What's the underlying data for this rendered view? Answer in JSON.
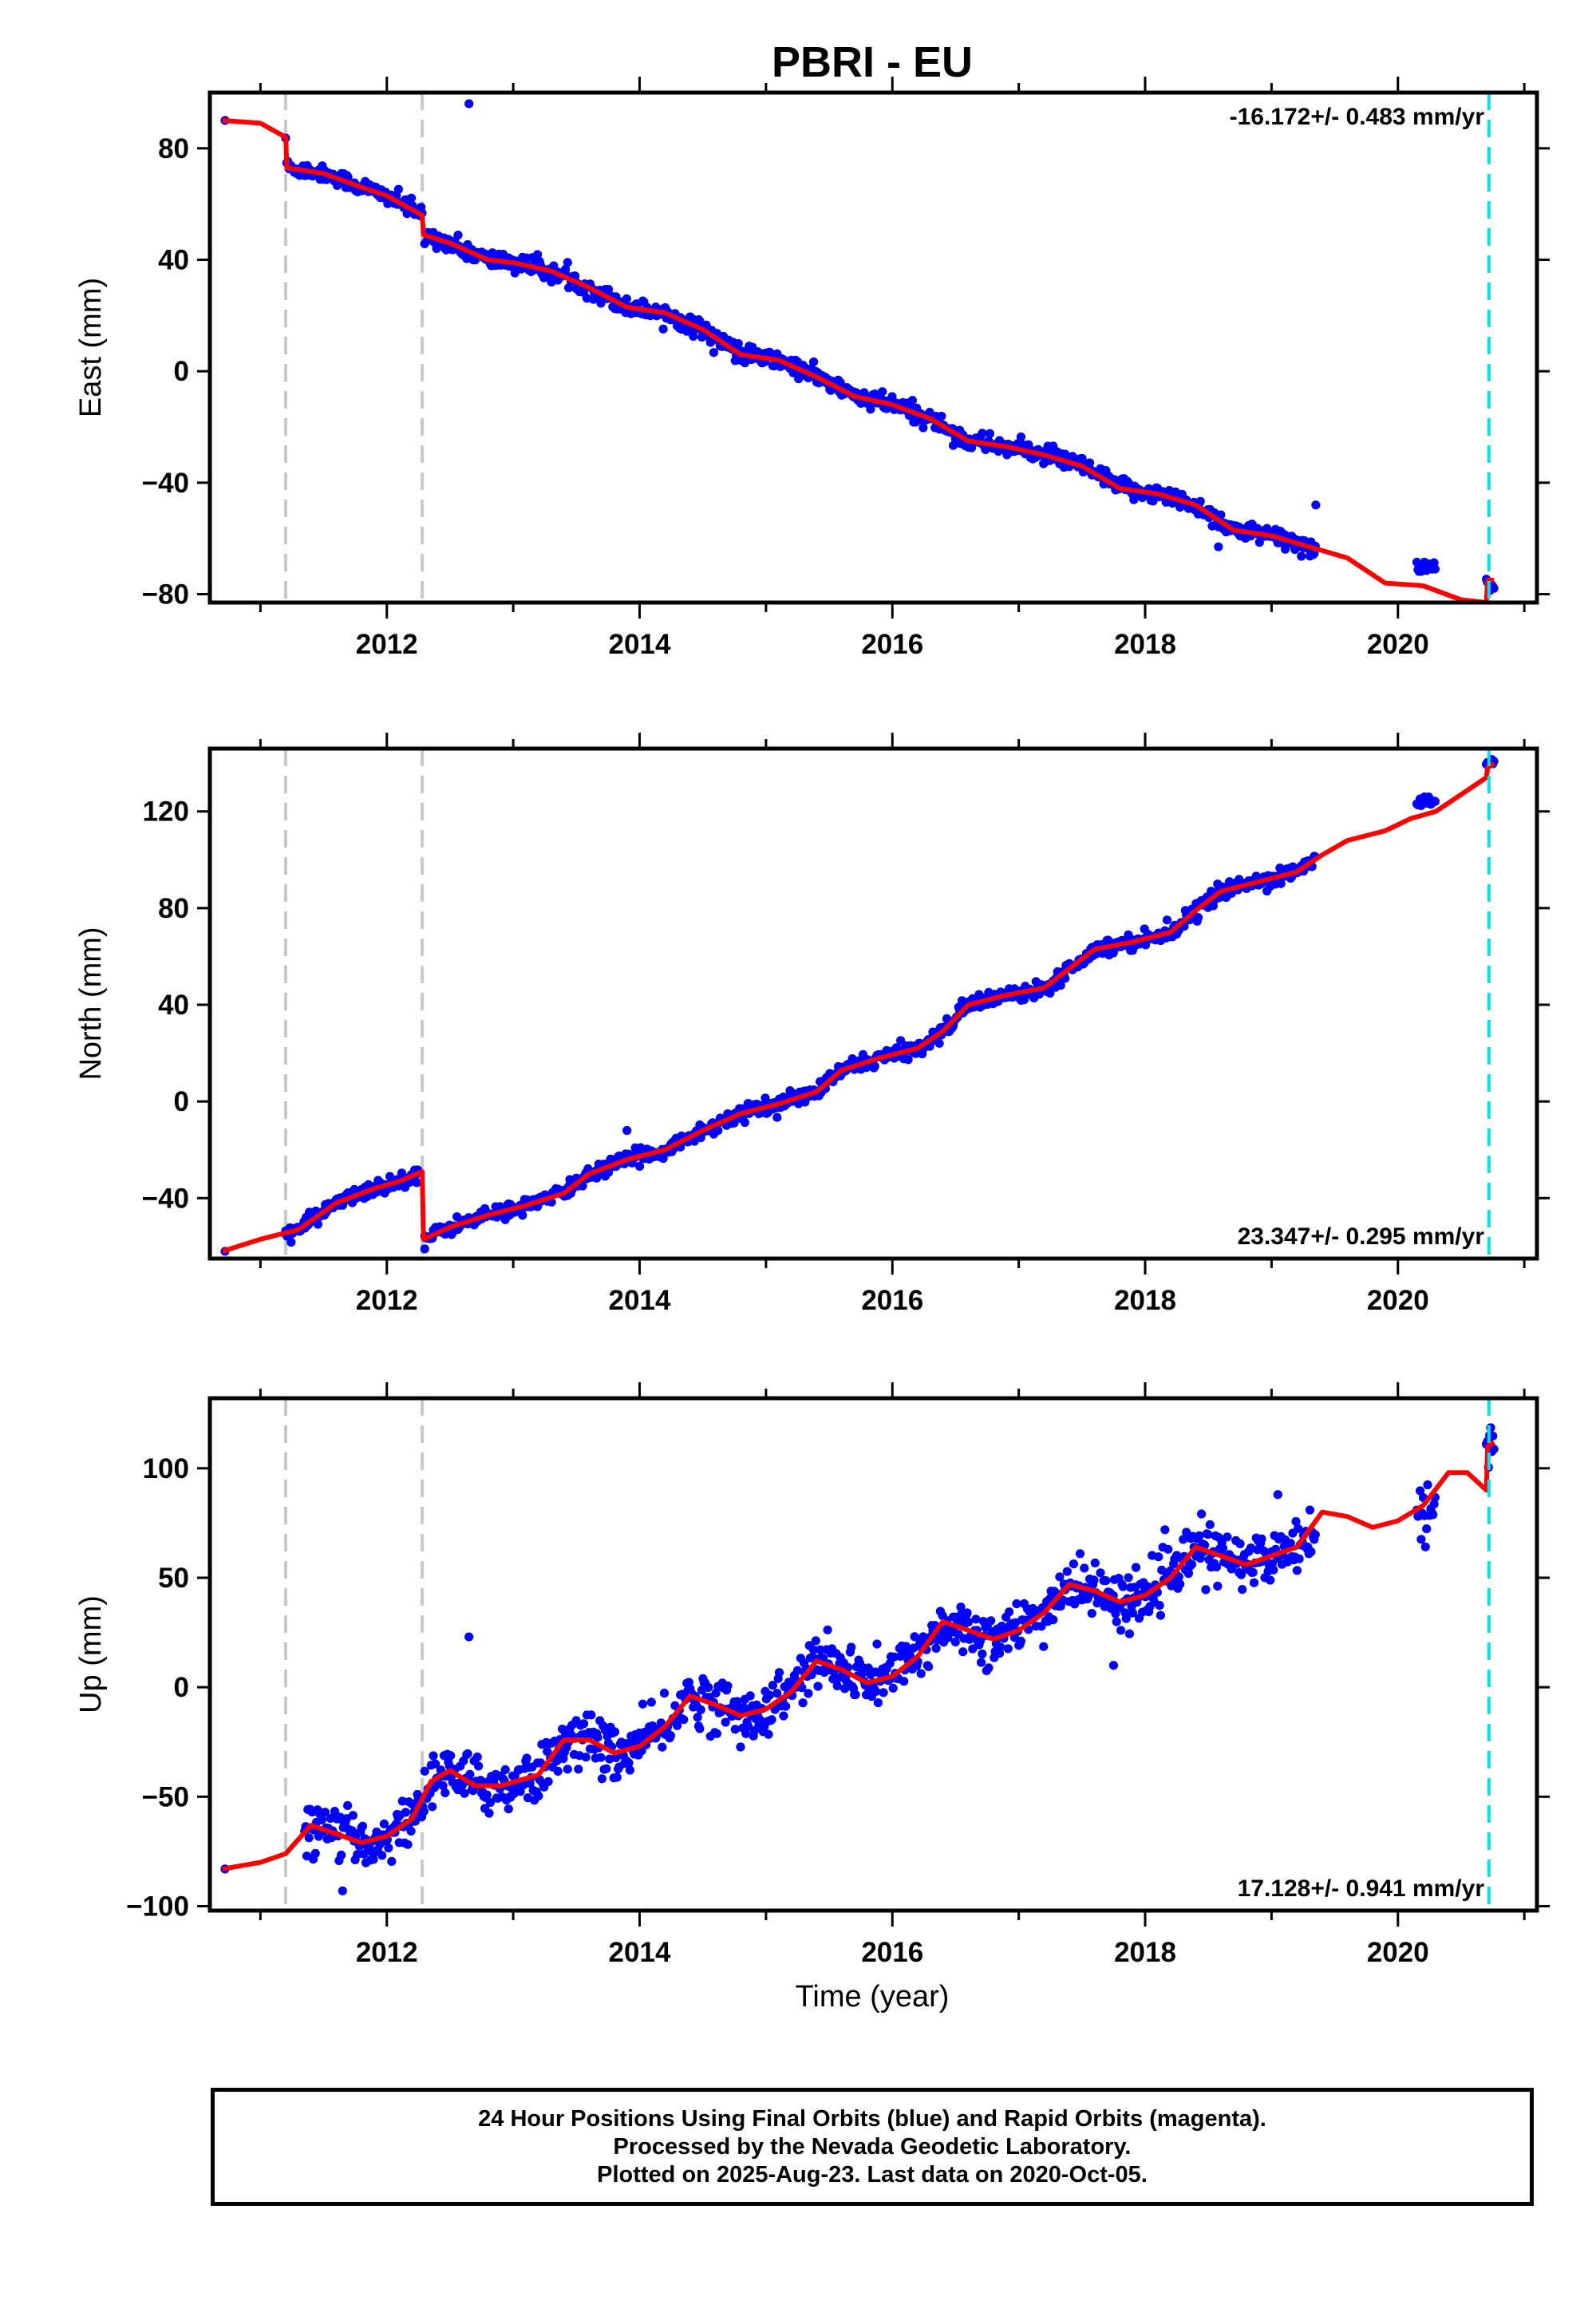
{
  "title": "PBRI - EU",
  "xlabel": "Time (year)",
  "footer": {
    "line1": "24 Hour Positions Using Final Orbits (blue) and Rapid Orbits (magenta).",
    "line2": "Processed by the Nevada Geodetic Laboratory.",
    "line3": "Plotted on 2025-Aug-23. Last data on 2020-Oct-05."
  },
  "colors": {
    "data_points": "#0000ff",
    "model_line": "#ff0000",
    "equipment_change_lines": "#c8c8c8",
    "last_data_line": "#00e5ee",
    "frame": "#000000"
  },
  "chart_data": [
    {
      "type": "scatter",
      "ylabel": "East (mm)",
      "xlim": [
        2010.6,
        2021.1
      ],
      "ylim": [
        -83,
        100
      ],
      "x_ticks": [
        2012,
        2014,
        2016,
        2018,
        2020
      ],
      "y_ticks": [
        80,
        40,
        0,
        -40,
        -80
      ],
      "rate_label": "-16.172+/- 0.483 mm/yr",
      "rate_position": "top-right",
      "vlines_gray": [
        2011.2,
        2012.28
      ],
      "vline_cyan": 2020.72,
      "segments": [
        {
          "start": 2011.2,
          "end": 2012.28,
          "y0": 73,
          "rate": -16.2,
          "noise": 2.2
        },
        {
          "start": 2012.3,
          "end": 2019.35,
          "y0": 48,
          "rate": -15.6,
          "noise": 2.3
        },
        {
          "start": 2020.15,
          "end": 2020.3,
          "y0": -70,
          "rate": 0,
          "noise": 1.5
        },
        {
          "start": 2020.7,
          "end": 2020.76,
          "y0": -77,
          "rate": 0,
          "noise": 2.0
        }
      ],
      "outliers": [
        [
          2010.72,
          90
        ],
        [
          2012.65,
          96
        ],
        [
          2018.58,
          -63
        ],
        [
          2019.35,
          -48
        ]
      ],
      "model_line": [
        [
          2010.7,
          90
        ],
        [
          2011.0,
          89
        ],
        [
          2011.2,
          84
        ],
        [
          2011.21,
          73
        ],
        [
          2011.5,
          71
        ],
        [
          2011.8,
          66
        ],
        [
          2012.0,
          63
        ],
        [
          2012.28,
          56
        ],
        [
          2012.29,
          49
        ],
        [
          2012.5,
          46
        ],
        [
          2012.8,
          40
        ],
        [
          2013.0,
          39
        ],
        [
          2013.3,
          36
        ],
        [
          2013.6,
          30
        ],
        [
          2013.9,
          23
        ],
        [
          2014.2,
          21
        ],
        [
          2014.5,
          15
        ],
        [
          2014.8,
          6
        ],
        [
          2015.1,
          4
        ],
        [
          2015.4,
          -2
        ],
        [
          2015.7,
          -9
        ],
        [
          2016.0,
          -12
        ],
        [
          2016.3,
          -17
        ],
        [
          2016.6,
          -25
        ],
        [
          2016.9,
          -27
        ],
        [
          2017.2,
          -30
        ],
        [
          2017.5,
          -34
        ],
        [
          2017.8,
          -42
        ],
        [
          2018.1,
          -44
        ],
        [
          2018.4,
          -48
        ],
        [
          2018.7,
          -57
        ],
        [
          2019.0,
          -59
        ],
        [
          2019.3,
          -63
        ],
        [
          2019.6,
          -67
        ],
        [
          2019.9,
          -76
        ],
        [
          2020.2,
          -77
        ],
        [
          2020.5,
          -82
        ],
        [
          2020.7,
          -83
        ],
        [
          2020.71,
          -75
        ],
        [
          2020.76,
          -75
        ]
      ]
    },
    {
      "type": "scatter",
      "ylabel": "North (mm)",
      "xlim": [
        2010.6,
        2021.1
      ],
      "ylim": [
        -65,
        146
      ],
      "x_ticks": [
        2012,
        2014,
        2016,
        2018,
        2020
      ],
      "y_ticks": [
        120,
        80,
        40,
        0,
        -40
      ],
      "rate_label": "23.347+/- 0.295 mm/yr",
      "rate_position": "bottom-right",
      "vlines_gray": [
        2011.2,
        2012.28
      ],
      "vline_cyan": 2020.72,
      "segments": [
        {
          "start": 2011.2,
          "end": 2012.25,
          "y0": -53,
          "rate": 21,
          "noise": 2.2
        },
        {
          "start": 2012.3,
          "end": 2019.35,
          "y0": -55,
          "rate": 22.4,
          "noise": 2.2
        },
        {
          "start": 2020.15,
          "end": 2020.3,
          "y0": 124,
          "rate": 0,
          "noise": 1.5
        },
        {
          "start": 2020.7,
          "end": 2020.76,
          "y0": 140,
          "rate": 0,
          "noise": 1.0
        }
      ],
      "outliers": [
        [
          2010.72,
          -62
        ],
        [
          2012.3,
          -61
        ],
        [
          2013.9,
          -12
        ]
      ],
      "model_line": [
        [
          2010.7,
          -62
        ],
        [
          2011.0,
          -57
        ],
        [
          2011.3,
          -53
        ],
        [
          2011.6,
          -42
        ],
        [
          2011.9,
          -36
        ],
        [
          2012.1,
          -33
        ],
        [
          2012.28,
          -29
        ],
        [
          2012.29,
          -57
        ],
        [
          2012.5,
          -52
        ],
        [
          2012.8,
          -47
        ],
        [
          2013.1,
          -43
        ],
        [
          2013.4,
          -38
        ],
        [
          2013.6,
          -30
        ],
        [
          2013.9,
          -24
        ],
        [
          2014.2,
          -20
        ],
        [
          2014.5,
          -12
        ],
        [
          2014.8,
          -5
        ],
        [
          2015.1,
          -1
        ],
        [
          2015.4,
          4
        ],
        [
          2015.6,
          13
        ],
        [
          2015.9,
          18
        ],
        [
          2016.2,
          22
        ],
        [
          2016.4,
          29
        ],
        [
          2016.6,
          40
        ],
        [
          2016.9,
          44
        ],
        [
          2017.2,
          47
        ],
        [
          2017.4,
          55
        ],
        [
          2017.6,
          63
        ],
        [
          2017.9,
          66
        ],
        [
          2018.2,
          70
        ],
        [
          2018.4,
          79
        ],
        [
          2018.6,
          87
        ],
        [
          2018.9,
          91
        ],
        [
          2019.2,
          95
        ],
        [
          2019.4,
          102
        ],
        [
          2019.6,
          108
        ],
        [
          2019.9,
          112
        ],
        [
          2020.1,
          117
        ],
        [
          2020.3,
          120
        ],
        [
          2020.5,
          127
        ],
        [
          2020.7,
          134
        ],
        [
          2020.71,
          138
        ],
        [
          2020.76,
          140
        ]
      ]
    },
    {
      "type": "scatter",
      "ylabel": "Up (mm)",
      "xlim": [
        2010.6,
        2021.1
      ],
      "ylim": [
        -102,
        132
      ],
      "x_ticks": [
        2012,
        2014,
        2016,
        2018,
        2020
      ],
      "y_ticks": [
        100,
        50,
        0,
        -50,
        -100
      ],
      "rate_label": "17.128+/- 0.941 mm/yr",
      "rate_position": "bottom-right",
      "vlines_gray": [
        2011.2,
        2012.28
      ],
      "vline_cyan": 2020.72,
      "segments": [
        {
          "start": 2011.35,
          "end": 2012.3,
          "y0": -58,
          "rate": 3,
          "noise": 8
        },
        {
          "start": 2012.3,
          "end": 2019.35,
          "y0": -47,
          "rate": 17.2,
          "noise": 8.5
        },
        {
          "start": 2020.15,
          "end": 2020.3,
          "y0": 80,
          "rate": 0,
          "noise": 7
        },
        {
          "start": 2020.7,
          "end": 2020.76,
          "y0": 110,
          "rate": 0,
          "noise": 8
        }
      ],
      "outliers": [
        [
          2010.72,
          -83
        ],
        [
          2012.65,
          23
        ],
        [
          2017.75,
          10
        ],
        [
          2011.65,
          -93
        ],
        [
          2019.05,
          88
        ]
      ],
      "model_line": [
        [
          2010.7,
          -83
        ],
        [
          2011.0,
          -80
        ],
        [
          2011.2,
          -76
        ],
        [
          2011.4,
          -63
        ],
        [
          2011.6,
          -67
        ],
        [
          2011.8,
          -71
        ],
        [
          2012.0,
          -68
        ],
        [
          2012.2,
          -60
        ],
        [
          2012.35,
          -43
        ],
        [
          2012.5,
          -38
        ],
        [
          2012.7,
          -45
        ],
        [
          2012.9,
          -45
        ],
        [
          2013.2,
          -40
        ],
        [
          2013.4,
          -24
        ],
        [
          2013.6,
          -24
        ],
        [
          2013.8,
          -30
        ],
        [
          2014.0,
          -27
        ],
        [
          2014.2,
          -18
        ],
        [
          2014.4,
          -4
        ],
        [
          2014.6,
          -8
        ],
        [
          2014.8,
          -13
        ],
        [
          2015.0,
          -10
        ],
        [
          2015.2,
          -2
        ],
        [
          2015.4,
          12
        ],
        [
          2015.6,
          8
        ],
        [
          2015.8,
          2
        ],
        [
          2016.0,
          5
        ],
        [
          2016.2,
          14
        ],
        [
          2016.4,
          30
        ],
        [
          2016.6,
          26
        ],
        [
          2016.8,
          22
        ],
        [
          2017.0,
          26
        ],
        [
          2017.2,
          34
        ],
        [
          2017.4,
          47
        ],
        [
          2017.6,
          44
        ],
        [
          2017.8,
          39
        ],
        [
          2018.0,
          42
        ],
        [
          2018.2,
          50
        ],
        [
          2018.4,
          64
        ],
        [
          2018.6,
          60
        ],
        [
          2018.8,
          56
        ],
        [
          2019.0,
          60
        ],
        [
          2019.2,
          64
        ],
        [
          2019.4,
          80
        ],
        [
          2019.6,
          78
        ],
        [
          2019.8,
          73
        ],
        [
          2020.0,
          76
        ],
        [
          2020.2,
          83
        ],
        [
          2020.4,
          98
        ],
        [
          2020.55,
          98
        ],
        [
          2020.7,
          90
        ],
        [
          2020.71,
          110
        ],
        [
          2020.76,
          112
        ]
      ]
    }
  ]
}
